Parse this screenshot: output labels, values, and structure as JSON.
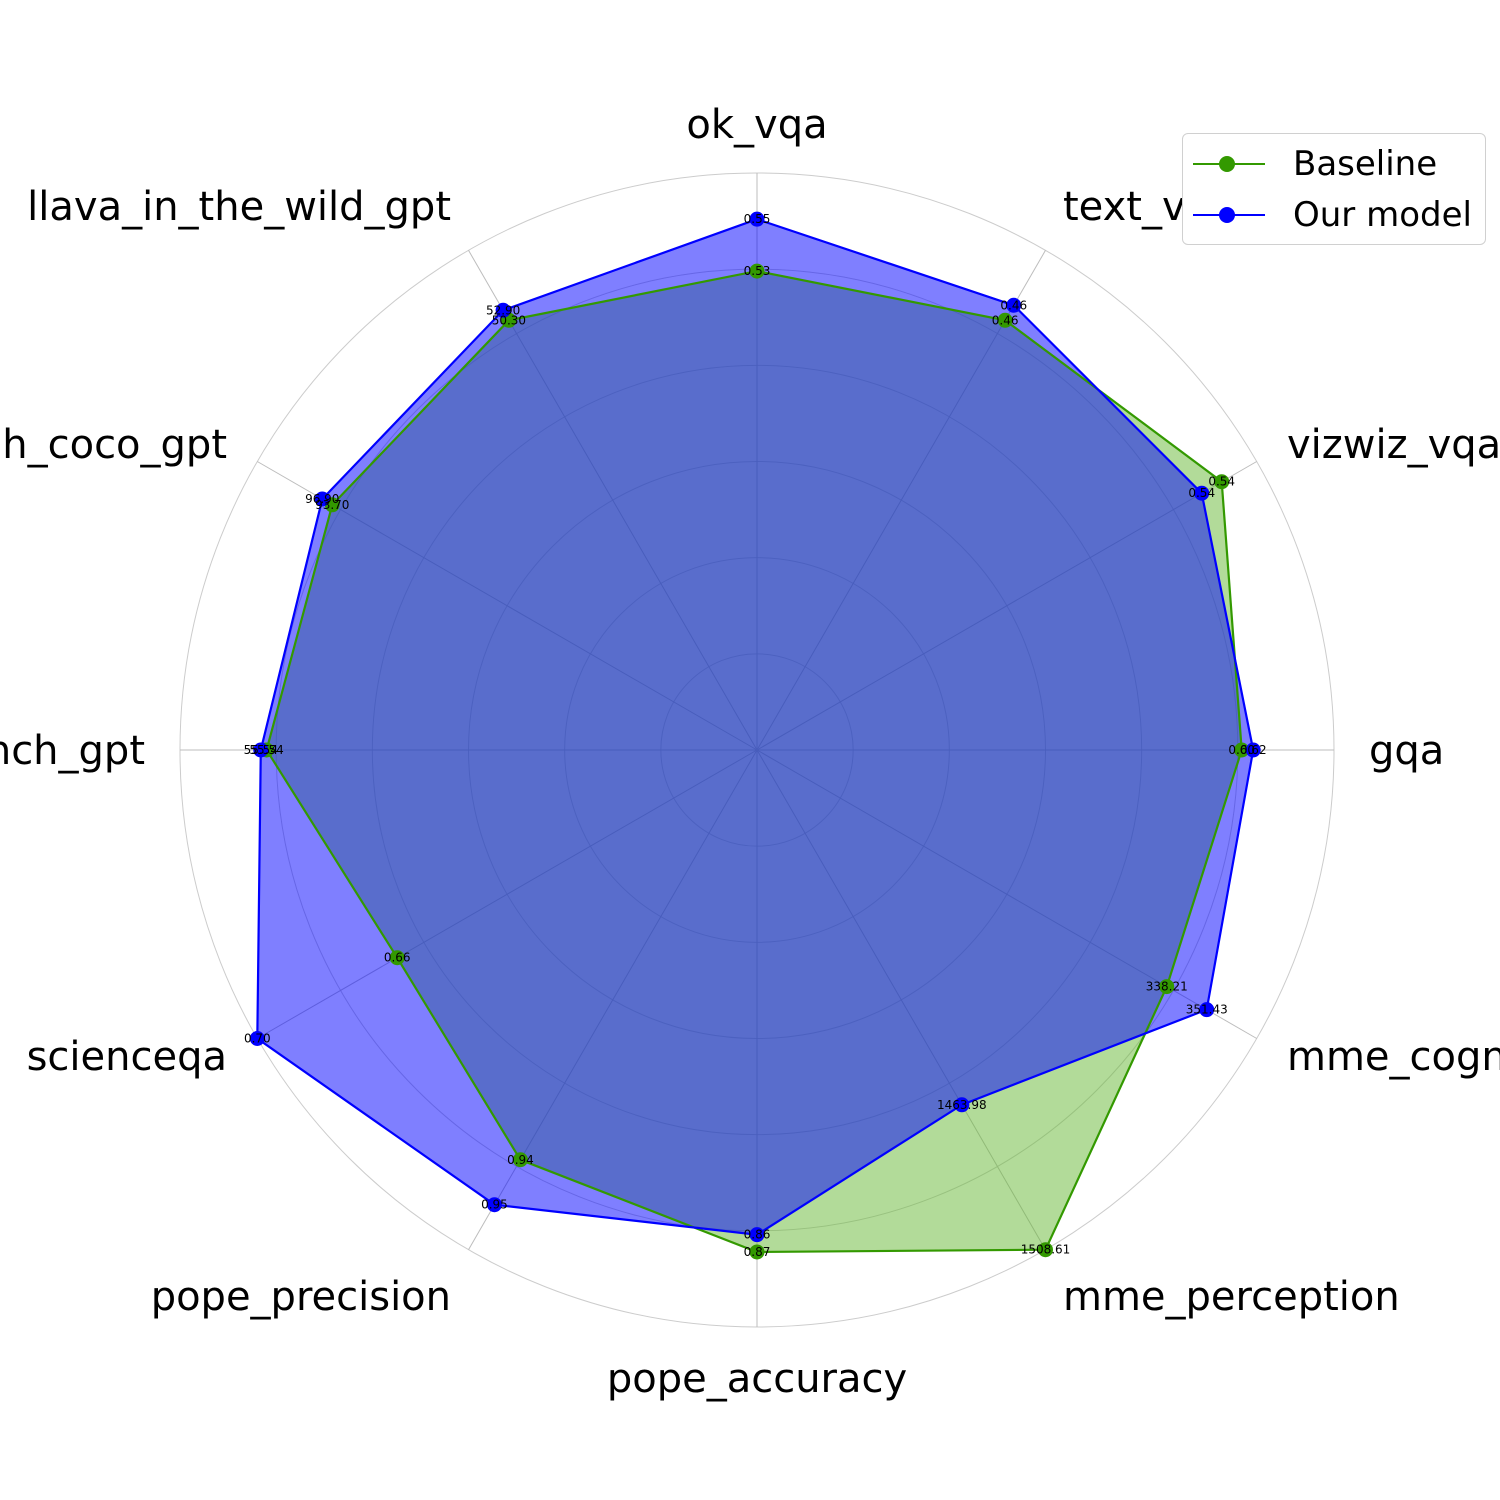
{
  "chart_data": {
    "type": "radar",
    "categories": [
      "ok_vqa",
      "text_vqa",
      "vizwiz_vqa",
      "gqa",
      "mme_cognition",
      "mme_perception",
      "pope_accuracy",
      "pope_precision",
      "scienceqa",
      "mmbench_gpt",
      "llava_bench_coco_gpt",
      "llava_in_the_wild_gpt"
    ],
    "series": [
      {
        "name": "Baseline",
        "color": "#339900",
        "fill": "#66b833",
        "normalized": [
          0.83,
          0.86,
          0.93,
          0.84,
          0.82,
          1.0,
          0.87,
          0.82,
          0.72,
          0.85,
          0.85,
          0.86
        ],
        "value_labels": [
          "0.53",
          "0.46",
          "0.54",
          "0.60",
          "338.21",
          "1508.61",
          "0.87",
          "0.94",
          "0.66",
          "55.54",
          "93.70",
          "50.30"
        ]
      },
      {
        "name": "Our model",
        "color": "#0000ff",
        "fill": "#0000ff",
        "normalized": [
          0.92,
          0.89,
          0.89,
          0.86,
          0.9,
          0.71,
          0.84,
          0.91,
          1.0,
          0.86,
          0.87,
          0.88
        ],
        "value_labels": [
          "0.55",
          "0.46",
          "0.54",
          "0.62",
          "351.43",
          "1463.98",
          "0.86",
          "0.95",
          "0.70",
          "55.54",
          "96.90",
          "52.90"
        ]
      }
    ],
    "grid_rings": 6,
    "legend": "top-right",
    "title": "",
    "xlabel": "",
    "ylabel": ""
  }
}
